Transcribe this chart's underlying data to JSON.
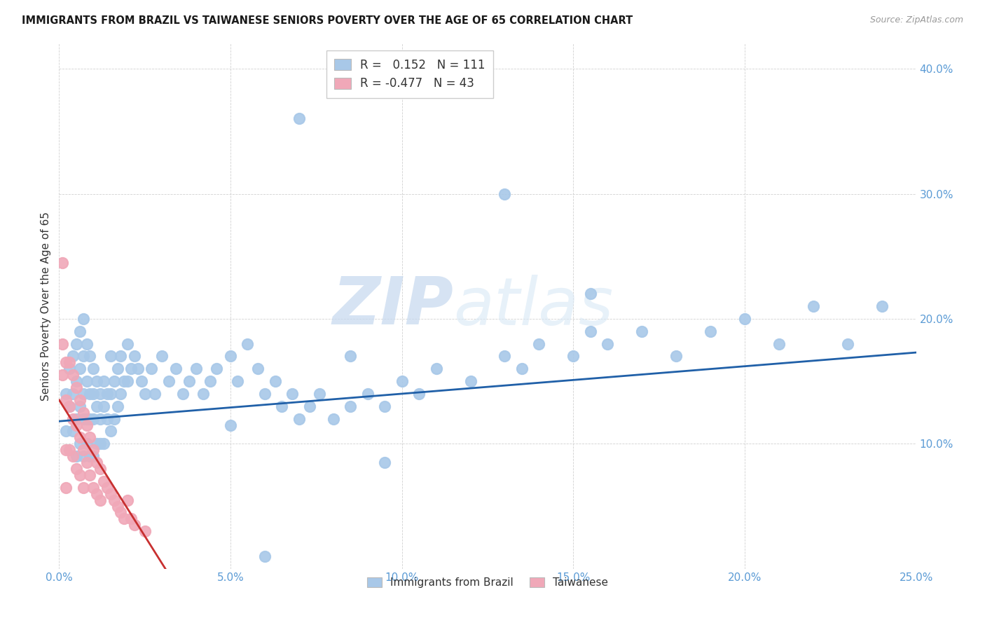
{
  "title": "IMMIGRANTS FROM BRAZIL VS TAIWANESE SENIORS POVERTY OVER THE AGE OF 65 CORRELATION CHART",
  "source": "Source: ZipAtlas.com",
  "ylabel": "Seniors Poverty Over the Age of 65",
  "xlim": [
    0.0,
    0.25
  ],
  "ylim": [
    0.0,
    0.42
  ],
  "xticks": [
    0.0,
    0.05,
    0.1,
    0.15,
    0.2,
    0.25
  ],
  "yticks": [
    0.0,
    0.1,
    0.2,
    0.3,
    0.4
  ],
  "xtick_labels": [
    "0.0%",
    "5.0%",
    "10.0%",
    "15.0%",
    "20.0%",
    "25.0%"
  ],
  "ytick_labels": [
    "",
    "10.0%",
    "20.0%",
    "30.0%",
    "40.0%"
  ],
  "legend_labels": [
    "Immigrants from Brazil",
    "Taiwanese"
  ],
  "blue_R": 0.152,
  "blue_N": 111,
  "pink_R": -0.477,
  "pink_N": 43,
  "blue_color": "#a8c8e8",
  "pink_color": "#f0a8b8",
  "blue_line_color": "#2060a8",
  "pink_line_color": "#c83030",
  "watermark_zip": "ZIP",
  "watermark_atlas": "atlas",
  "background_color": "#ffffff",
  "blue_line_x0": 0.0,
  "blue_line_y0": 0.118,
  "blue_line_x1": 0.25,
  "blue_line_y1": 0.173,
  "pink_line_x0": 0.0,
  "pink_line_y0": 0.135,
  "pink_line_x1": 0.031,
  "pink_line_y1": 0.0,
  "blue_x": [
    0.002,
    0.002,
    0.003,
    0.003,
    0.004,
    0.004,
    0.004,
    0.005,
    0.005,
    0.005,
    0.005,
    0.006,
    0.006,
    0.006,
    0.006,
    0.007,
    0.007,
    0.007,
    0.007,
    0.007,
    0.008,
    0.008,
    0.008,
    0.008,
    0.009,
    0.009,
    0.009,
    0.009,
    0.01,
    0.01,
    0.01,
    0.01,
    0.011,
    0.011,
    0.011,
    0.012,
    0.012,
    0.012,
    0.013,
    0.013,
    0.013,
    0.014,
    0.014,
    0.015,
    0.015,
    0.015,
    0.016,
    0.016,
    0.017,
    0.017,
    0.018,
    0.018,
    0.019,
    0.02,
    0.02,
    0.021,
    0.022,
    0.023,
    0.024,
    0.025,
    0.027,
    0.028,
    0.03,
    0.032,
    0.034,
    0.036,
    0.038,
    0.04,
    0.042,
    0.044,
    0.046,
    0.05,
    0.052,
    0.055,
    0.058,
    0.06,
    0.063,
    0.065,
    0.068,
    0.07,
    0.073,
    0.076,
    0.08,
    0.085,
    0.09,
    0.095,
    0.1,
    0.105,
    0.11,
    0.12,
    0.13,
    0.135,
    0.14,
    0.15,
    0.155,
    0.16,
    0.17,
    0.18,
    0.19,
    0.2,
    0.21,
    0.22,
    0.23,
    0.24,
    0.05,
    0.06,
    0.13,
    0.095,
    0.07,
    0.155,
    0.085
  ],
  "blue_y": [
    0.14,
    0.11,
    0.16,
    0.13,
    0.17,
    0.14,
    0.11,
    0.18,
    0.15,
    0.12,
    0.09,
    0.19,
    0.16,
    0.13,
    0.1,
    0.2,
    0.17,
    0.14,
    0.12,
    0.09,
    0.18,
    0.15,
    0.12,
    0.1,
    0.17,
    0.14,
    0.12,
    0.09,
    0.16,
    0.14,
    0.12,
    0.09,
    0.15,
    0.13,
    0.1,
    0.14,
    0.12,
    0.1,
    0.15,
    0.13,
    0.1,
    0.14,
    0.12,
    0.17,
    0.14,
    0.11,
    0.15,
    0.12,
    0.16,
    0.13,
    0.17,
    0.14,
    0.15,
    0.18,
    0.15,
    0.16,
    0.17,
    0.16,
    0.15,
    0.14,
    0.16,
    0.14,
    0.17,
    0.15,
    0.16,
    0.14,
    0.15,
    0.16,
    0.14,
    0.15,
    0.16,
    0.17,
    0.15,
    0.18,
    0.16,
    0.14,
    0.15,
    0.13,
    0.14,
    0.12,
    0.13,
    0.14,
    0.12,
    0.13,
    0.14,
    0.13,
    0.15,
    0.14,
    0.16,
    0.15,
    0.17,
    0.16,
    0.18,
    0.17,
    0.19,
    0.18,
    0.19,
    0.17,
    0.19,
    0.2,
    0.18,
    0.21,
    0.18,
    0.21,
    0.115,
    0.01,
    0.3,
    0.085,
    0.36,
    0.22,
    0.17
  ],
  "pink_x": [
    0.001,
    0.001,
    0.001,
    0.002,
    0.002,
    0.002,
    0.002,
    0.003,
    0.003,
    0.003,
    0.004,
    0.004,
    0.004,
    0.005,
    0.005,
    0.005,
    0.006,
    0.006,
    0.006,
    0.007,
    0.007,
    0.007,
    0.008,
    0.008,
    0.009,
    0.009,
    0.01,
    0.01,
    0.011,
    0.011,
    0.012,
    0.012,
    0.013,
    0.014,
    0.015,
    0.016,
    0.017,
    0.018,
    0.019,
    0.02,
    0.021,
    0.022,
    0.025
  ],
  "pink_y": [
    0.245,
    0.18,
    0.155,
    0.165,
    0.135,
    0.095,
    0.065,
    0.165,
    0.13,
    0.095,
    0.155,
    0.12,
    0.09,
    0.145,
    0.115,
    0.08,
    0.135,
    0.105,
    0.075,
    0.125,
    0.095,
    0.065,
    0.115,
    0.085,
    0.105,
    0.075,
    0.095,
    0.065,
    0.085,
    0.06,
    0.08,
    0.055,
    0.07,
    0.065,
    0.06,
    0.055,
    0.05,
    0.045,
    0.04,
    0.055,
    0.04,
    0.035,
    0.03
  ]
}
